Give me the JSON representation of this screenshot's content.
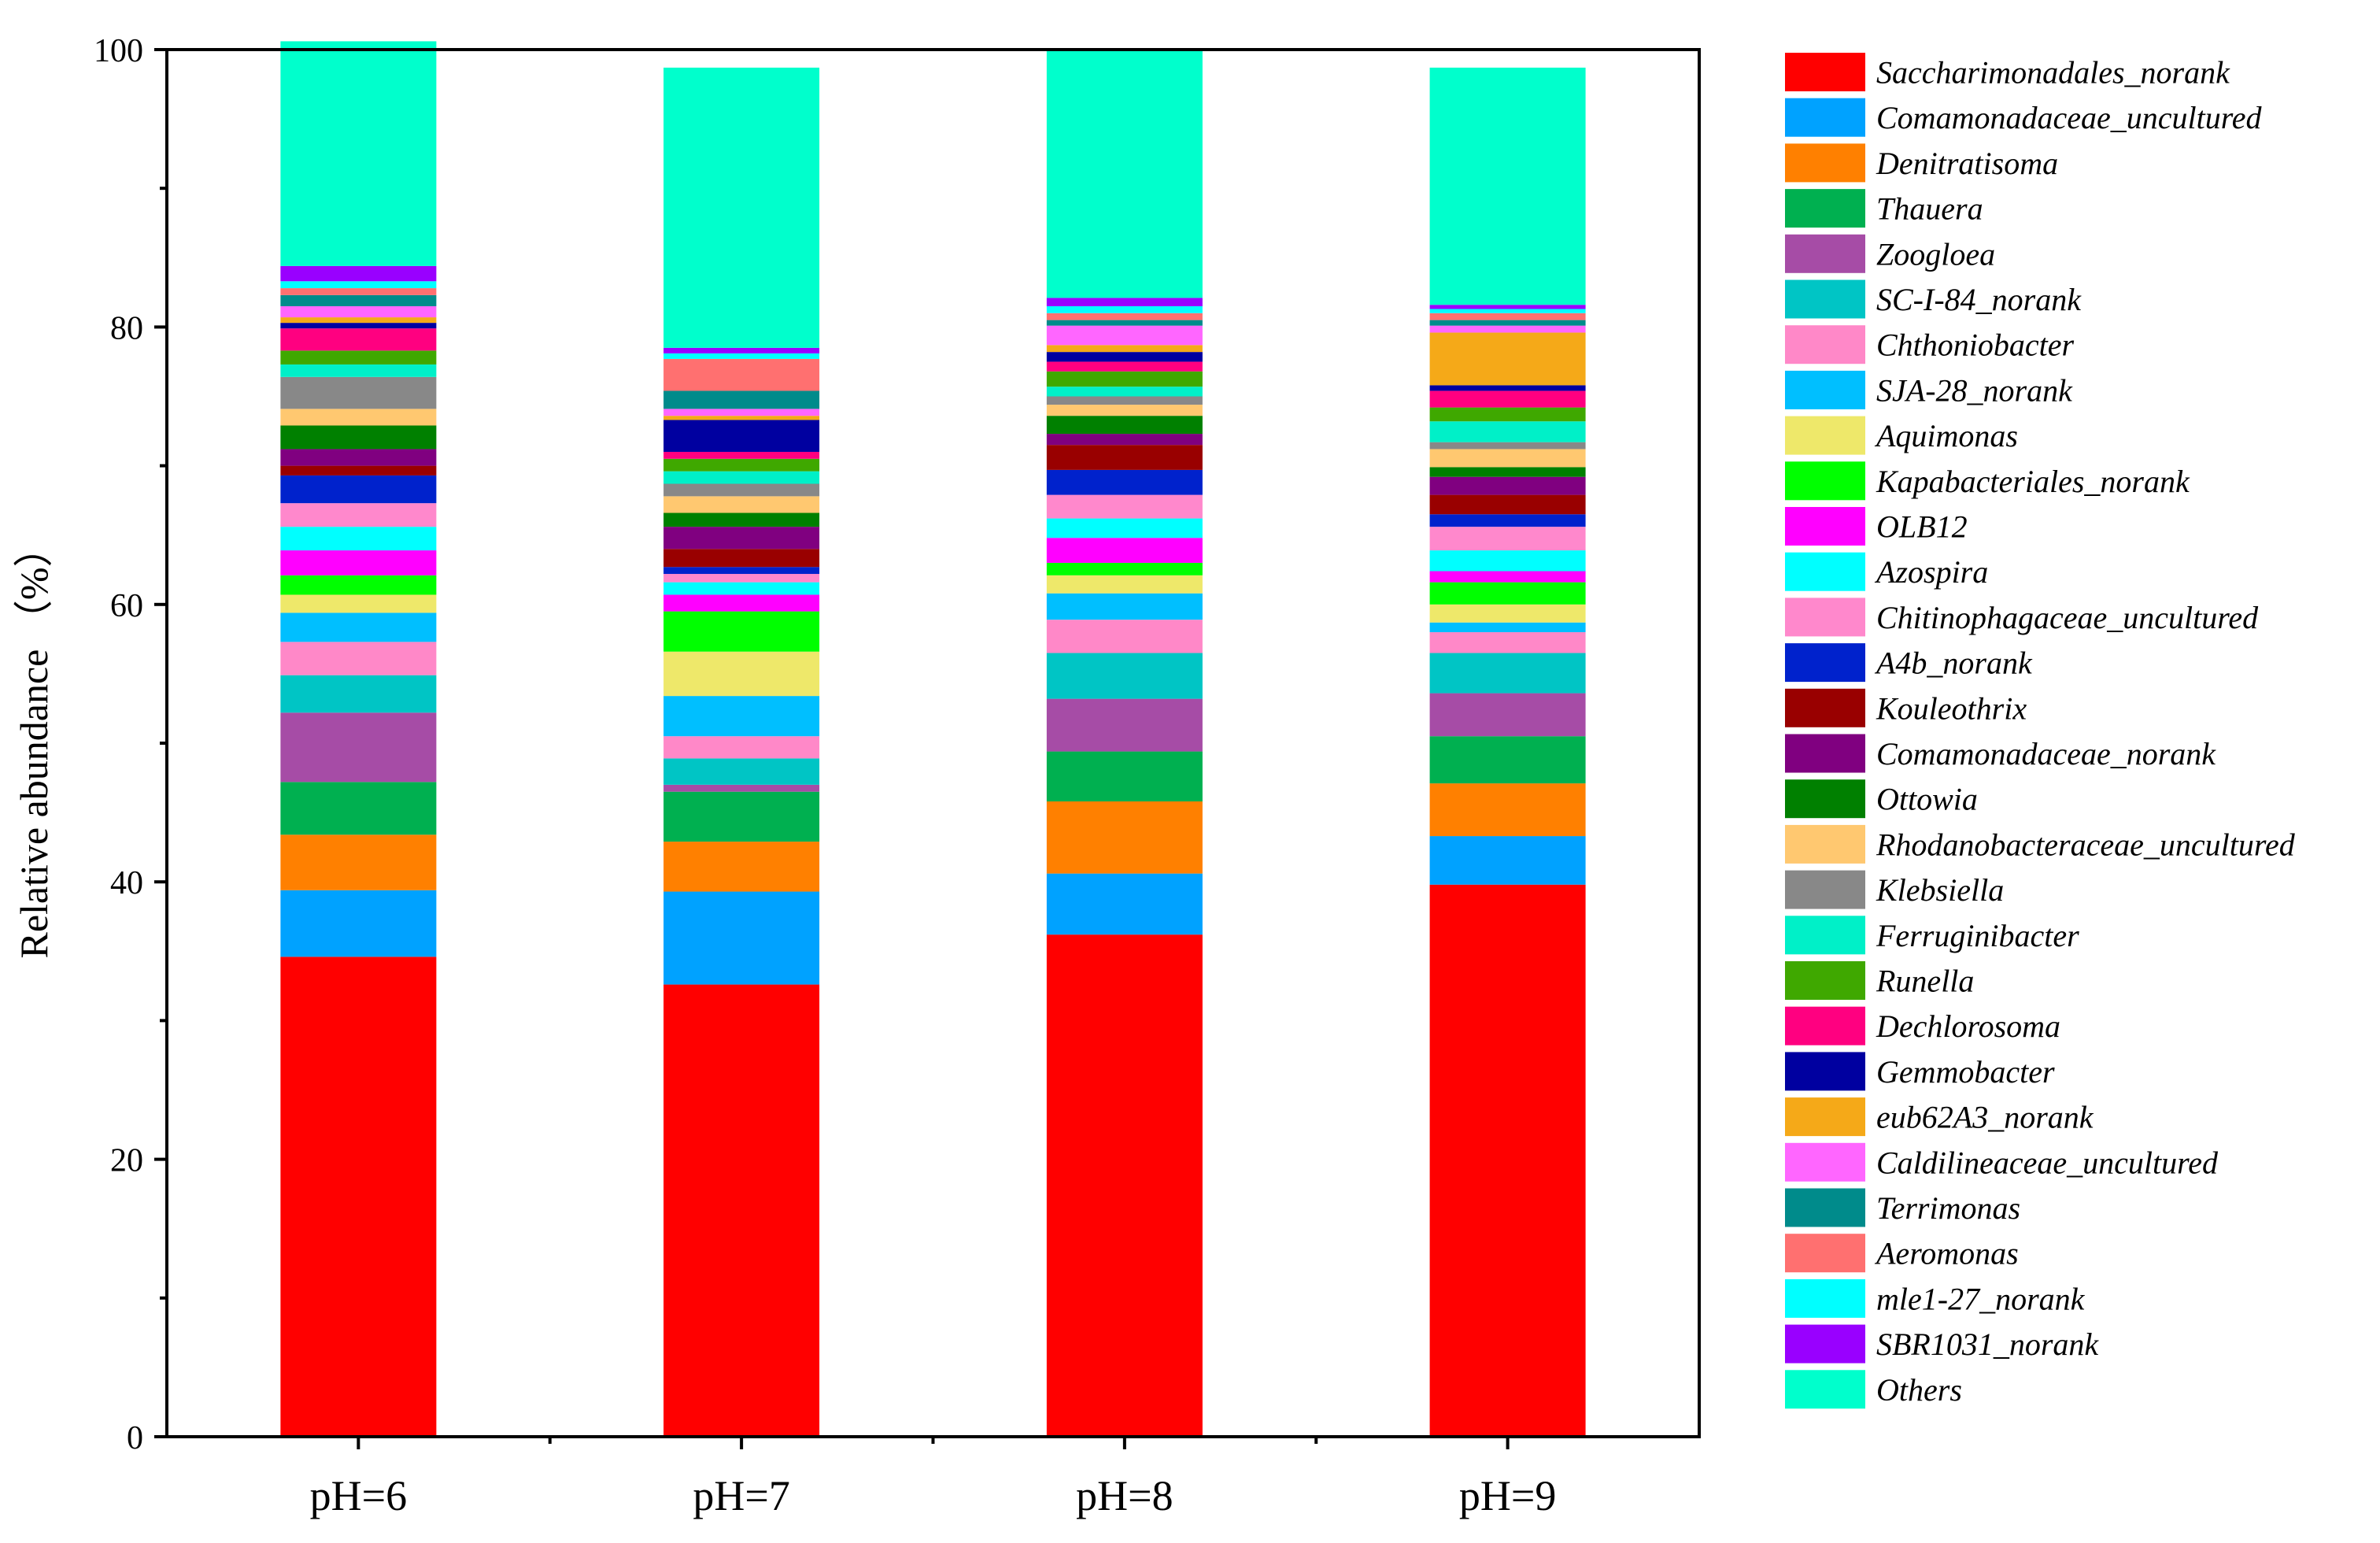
{
  "chart_data": {
    "type": "bar",
    "stacked": true,
    "ylabel": "Relative abundance （%）",
    "xlabel": "",
    "ylim": [
      0,
      100
    ],
    "y_ticks": [
      0,
      20,
      40,
      60,
      80,
      100
    ],
    "categories": [
      "pH=6",
      "pH=7",
      "pH=8",
      "pH=9"
    ],
    "legend_position": "right",
    "grid": false,
    "series": [
      {
        "name": "Saccharimonadales_norank",
        "color": "#FF0000",
        "values": [
          34.6,
          32.6,
          36.2,
          39.8
        ]
      },
      {
        "name": "Comamonadaceae_uncultured",
        "color": "#00A2FF",
        "values": [
          4.8,
          6.7,
          4.4,
          3.5
        ]
      },
      {
        "name": "Denitratisoma",
        "color": "#FF8000",
        "values": [
          4.0,
          3.6,
          5.2,
          3.8
        ]
      },
      {
        "name": "Thauera",
        "color": "#00B050",
        "values": [
          3.8,
          3.6,
          3.6,
          3.4
        ]
      },
      {
        "name": "Zoogloea",
        "color": "#A64CA6",
        "values": [
          5.0,
          0.5,
          3.8,
          3.1
        ]
      },
      {
        "name": "SC-I-84_norank",
        "color": "#00C5C5",
        "values": [
          2.7,
          1.9,
          3.3,
          2.9
        ]
      },
      {
        "name": "Chthoniobacter",
        "color": "#FF88C8",
        "values": [
          2.4,
          1.6,
          2.4,
          1.5
        ]
      },
      {
        "name": "SJA-28_norank",
        "color": "#00BFFF",
        "values": [
          2.1,
          2.9,
          1.9,
          0.7
        ]
      },
      {
        "name": "Aquimonas",
        "color": "#EEE86A",
        "values": [
          1.3,
          3.2,
          1.3,
          1.3
        ]
      },
      {
        "name": "Kapabacteriales_norank",
        "color": "#00FF00",
        "values": [
          1.4,
          2.9,
          0.9,
          1.6
        ]
      },
      {
        "name": "OLB12",
        "color": "#FF00FF",
        "values": [
          1.8,
          1.2,
          1.8,
          0.8
        ]
      },
      {
        "name": "Azospira",
        "color": "#00FFFF",
        "values": [
          1.7,
          0.9,
          1.4,
          1.5
        ]
      },
      {
        "name": "Chitinophagaceae_uncultured",
        "color": "#FF88CC",
        "values": [
          1.7,
          0.6,
          1.7,
          1.7
        ]
      },
      {
        "name": "A4b_norank",
        "color": "#0022CC",
        "values": [
          2.0,
          0.5,
          1.8,
          0.9
        ]
      },
      {
        "name": "Kouleothrix",
        "color": "#990000",
        "values": [
          0.7,
          1.3,
          1.8,
          1.4
        ]
      },
      {
        "name": "Comamonadaceae_norank",
        "color": "#800080",
        "values": [
          1.2,
          1.6,
          0.8,
          1.3
        ]
      },
      {
        "name": "Ottowia",
        "color": "#008000",
        "values": [
          1.7,
          1.0,
          1.3,
          0.7
        ]
      },
      {
        "name": "Rhodanobacteraceae_uncultured",
        "color": "#FFC870",
        "values": [
          1.2,
          1.2,
          0.8,
          1.3
        ]
      },
      {
        "name": "Klebsiella",
        "color": "#888888",
        "values": [
          2.3,
          0.9,
          0.6,
          0.5
        ]
      },
      {
        "name": "Ferruginibacter",
        "color": "#00F0C8",
        "values": [
          0.9,
          0.9,
          0.7,
          1.5
        ]
      },
      {
        "name": "Runella",
        "color": "#3FA800",
        "values": [
          1.0,
          0.9,
          1.1,
          1.0
        ]
      },
      {
        "name": "Dechlorosoma",
        "color": "#FF0080",
        "values": [
          1.6,
          0.5,
          0.7,
          1.2
        ]
      },
      {
        "name": "Gemmobacter",
        "color": "#0000A0",
        "values": [
          0.4,
          2.3,
          0.7,
          0.4
        ]
      },
      {
        "name": "eub62A3_norank",
        "color": "#F5A918",
        "values": [
          0.4,
          0.3,
          0.5,
          3.8
        ]
      },
      {
        "name": "Caldilineaceae_uncultured",
        "color": "#FF66FF",
        "values": [
          0.8,
          0.5,
          1.4,
          0.5
        ]
      },
      {
        "name": "Terrimonas",
        "color": "#008B8B",
        "values": [
          0.8,
          1.3,
          0.4,
          0.4
        ]
      },
      {
        "name": "Aeromonas",
        "color": "#FF7070",
        "values": [
          0.5,
          2.3,
          0.5,
          0.5
        ]
      },
      {
        "name": "mle1-27_norank",
        "color": "#00FFFF",
        "values": [
          0.5,
          0.4,
          0.5,
          0.3
        ]
      },
      {
        "name": "SBR1031_norank",
        "color": "#9900FF",
        "values": [
          1.1,
          0.4,
          0.6,
          0.3
        ]
      },
      {
        "name": "Others",
        "color": "#00FFCC",
        "values": [
          16.2,
          20.2,
          17.9,
          17.1
        ]
      }
    ]
  }
}
